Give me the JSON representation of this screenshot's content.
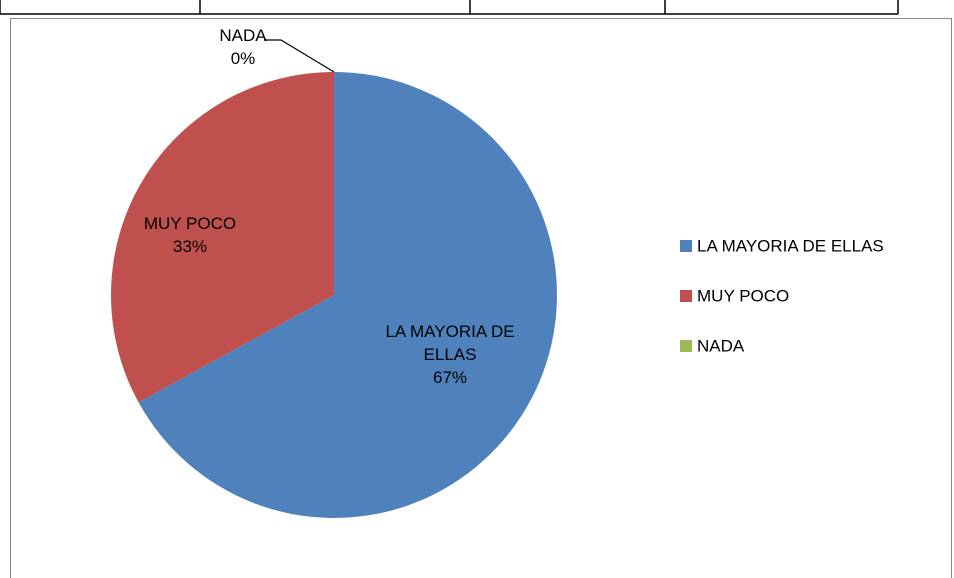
{
  "chart_data": {
    "type": "pie",
    "categories": [
      "LA MAYORIA DE ELLAS",
      "MUY POCO",
      "NADA"
    ],
    "values": [
      67,
      33,
      0
    ],
    "value_labels": [
      "67%",
      "33%",
      "0%"
    ],
    "colors": [
      "#4f81bd",
      "#c0504d",
      "#9bbb59"
    ],
    "legend": "right"
  }
}
